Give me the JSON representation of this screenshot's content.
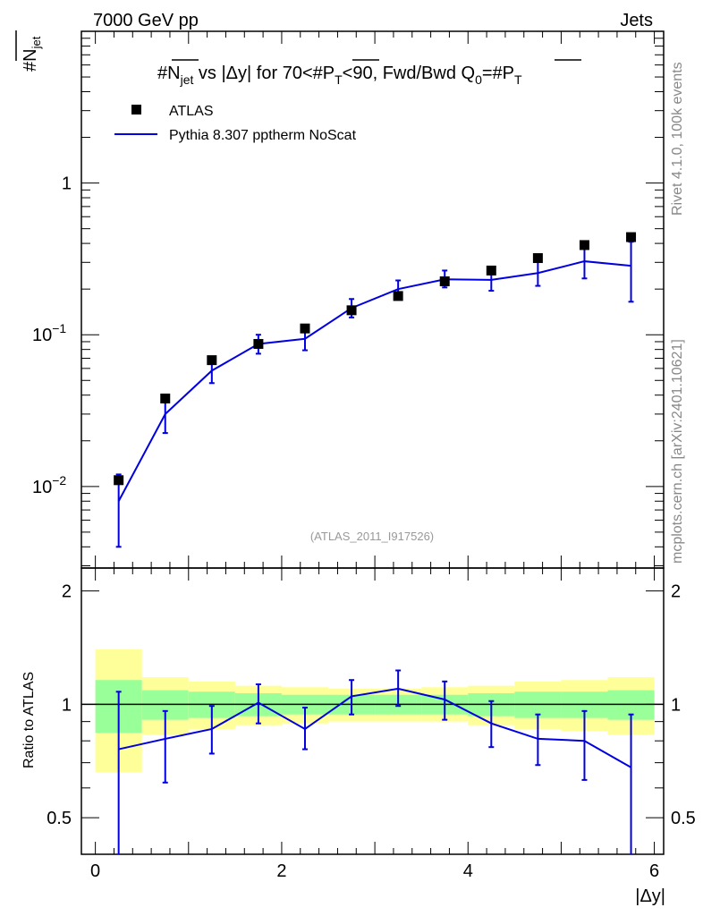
{
  "header": {
    "left": "7000 GeV pp",
    "right": "Jets"
  },
  "side": {
    "rivet": "Rivet 4.1.0,  100k events",
    "mcplots": "mcplots.cern.ch [arXiv:2401.10621]"
  },
  "ylabel_top": {
    "prefix": "#",
    "main": "N",
    "sub": "jet"
  },
  "title": {
    "p1": "#",
    "n": "N",
    "nsub": "jet",
    "p2": " vs |Δy| for 70<#",
    "pt1": "P",
    "pt1sub": "T",
    "p3": "<90, Fwd/Bwd Q",
    "q0sub": "0",
    "p4": "=#",
    "pt2": "P",
    "pt2sub": "T"
  },
  "legend": {
    "data_label": "ATLAS",
    "mc_label": "Pythia 8.307 pptherm NoScat"
  },
  "watermark": "(ATLAS_2011_I917526)",
  "colors": {
    "data": "#000000",
    "mc": "#0000e0",
    "band_green": "#99ff99",
    "band_yellow": "#ffff99"
  },
  "chart_data": {
    "type": "line",
    "xlabel": "|Δy|",
    "ylabel_ratio": "Ratio to ATLAS",
    "x_ticks": [
      "0",
      "2",
      "4",
      "6"
    ],
    "y_ticks_top": [
      {
        "base": "10",
        "exp": "−2"
      },
      {
        "base": "10",
        "exp": "−1"
      },
      {
        "base": "1",
        "exp": ""
      }
    ],
    "y_ticks_ratio": [
      "0.5",
      "1",
      "2"
    ],
    "xlim": [
      -0.15,
      6.1
    ],
    "ylim_top": [
      0.0029,
      10
    ],
    "ylim_ratio": [
      0.4,
      2.3
    ],
    "x": [
      0.25,
      0.75,
      1.25,
      1.75,
      2.25,
      2.75,
      3.25,
      3.75,
      4.25,
      4.75,
      5.25,
      5.75
    ],
    "bin_edges": [
      0,
      0.5,
      1.0,
      1.5,
      2.0,
      2.5,
      3.0,
      3.5,
      4.0,
      4.5,
      5.0,
      5.5,
      6.0
    ],
    "data_values": [
      0.011,
      0.038,
      0.068,
      0.087,
      0.11,
      0.145,
      0.18,
      0.225,
      0.265,
      0.32,
      0.39,
      0.44
    ],
    "mc_values": [
      0.008,
      0.03,
      0.058,
      0.087,
      0.094,
      0.15,
      0.2,
      0.232,
      0.23,
      0.255,
      0.305,
      0.285
    ],
    "mc_err_lo": [
      0.004,
      0.0225,
      0.048,
      0.075,
      0.079,
      0.13,
      0.178,
      0.205,
      0.195,
      0.21,
      0.235,
      0.165
    ],
    "mc_err_hi": [
      0.012,
      0.038,
      0.068,
      0.1,
      0.112,
      0.172,
      0.228,
      0.265,
      0.268,
      0.305,
      0.375,
      0.41
    ],
    "ratio_values": [
      0.76,
      0.81,
      0.86,
      1.01,
      0.86,
      1.05,
      1.1,
      1.03,
      0.89,
      0.81,
      0.8,
      0.68
    ],
    "ratio_err_lo": [
      0.32,
      0.62,
      0.74,
      0.89,
      0.76,
      0.94,
      0.99,
      0.91,
      0.77,
      0.69,
      0.63,
      0.32
    ],
    "ratio_err_hi": [
      1.08,
      0.96,
      0.99,
      1.13,
      0.98,
      1.16,
      1.23,
      1.15,
      1.02,
      0.94,
      0.96,
      0.94
    ],
    "band_green_lo": [
      0.84,
      0.91,
      0.92,
      0.93,
      0.94,
      0.94,
      0.94,
      0.94,
      0.93,
      0.92,
      0.92,
      0.91
    ],
    "band_green_hi": [
      1.16,
      1.09,
      1.08,
      1.07,
      1.06,
      1.06,
      1.06,
      1.06,
      1.07,
      1.08,
      1.08,
      1.09
    ],
    "band_yellow_lo": [
      0.66,
      0.83,
      0.86,
      0.88,
      0.89,
      0.9,
      0.9,
      0.9,
      0.88,
      0.86,
      0.85,
      0.83
    ],
    "band_yellow_hi": [
      1.4,
      1.18,
      1.15,
      1.12,
      1.11,
      1.1,
      1.1,
      1.11,
      1.12,
      1.15,
      1.16,
      1.18
    ]
  }
}
